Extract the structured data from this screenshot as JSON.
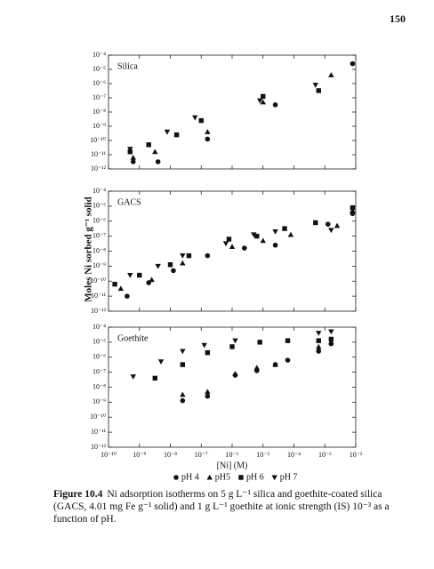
{
  "page_number": "150",
  "chart_data": [
    {
      "type": "scatter",
      "title": "Silica",
      "xscale": "log",
      "yscale": "log",
      "xlim": [
        1e-10,
        0.01
      ],
      "ylim": [
        1e-12,
        0.0001
      ],
      "xticks": [
        1e-10,
        1e-09,
        1e-08,
        1e-07,
        1e-06,
        1e-05,
        0.0001,
        0.001,
        0.01
      ],
      "yticks": [
        {
          "value": 1e-12,
          "label": "10⁻¹²"
        },
        {
          "value": 1e-11,
          "label": "10⁻¹¹"
        },
        {
          "value": 1e-10,
          "label": "10⁻¹⁰"
        },
        {
          "value": 1e-09,
          "label": "10⁻⁹"
        },
        {
          "value": 1e-08,
          "label": "10⁻⁸"
        },
        {
          "value": 1e-07,
          "label": "10⁻⁷"
        },
        {
          "value": 1e-06,
          "label": "10⁻⁶"
        },
        {
          "value": 1e-05,
          "label": "10⁻⁵"
        },
        {
          "value": 0.0001,
          "label": "10⁻⁴"
        }
      ],
      "series": [
        {
          "name": "pH 4",
          "marker": "circle",
          "color": "#111111",
          "x": [
            6.3e-10,
            4e-09,
            1.6e-07,
            2.5e-05,
            0.0079
          ],
          "values": [
            3.2e-12,
            3.2e-12,
            1.26e-10,
            3.2e-08,
            2.5e-05
          ]
        },
        {
          "name": "pH5",
          "marker": "triangle-up",
          "color": "#111111",
          "x": [
            6.3e-10,
            3.2e-09,
            1.6e-07,
            1e-05,
            0.0016
          ],
          "values": [
            6.3e-12,
            1.6e-11,
            4e-10,
            5e-08,
            4e-06
          ]
        },
        {
          "name": "pH 6",
          "marker": "square",
          "color": "#111111",
          "x": [
            5e-10,
            2e-09,
            1.6e-08,
            1e-07,
            1e-05,
            0.00063
          ],
          "values": [
            1.6e-11,
            5e-11,
            2.5e-10,
            2.5e-09,
            1.26e-07,
            3.2e-07
          ]
        },
        {
          "name": "pH 7",
          "marker": "triangle-down",
          "color": "#111111",
          "x": [
            5e-10,
            7.9e-09,
            6.3e-08,
            7.9e-06,
            0.0005
          ],
          "values": [
            2.5e-11,
            4e-10,
            4e-09,
            6.3e-08,
            7.9e-07
          ]
        }
      ]
    },
    {
      "type": "scatter",
      "title": "GACS",
      "ylabel": "Moles Ni sorbed g⁻¹ solid",
      "xscale": "log",
      "yscale": "log",
      "xlim": [
        1e-10,
        0.01
      ],
      "ylim": [
        1e-12,
        0.0001
      ],
      "xticks": [
        1e-10,
        1e-09,
        1e-08,
        1e-07,
        1e-06,
        1e-05,
        0.0001,
        0.001,
        0.01
      ],
      "yticks": [
        {
          "value": 1e-12,
          "label": "10⁻¹²"
        },
        {
          "value": 1e-11,
          "label": "10⁻¹¹"
        },
        {
          "value": 1e-10,
          "label": "10⁻¹⁰"
        },
        {
          "value": 1e-09,
          "label": "10⁻⁹"
        },
        {
          "value": 1e-08,
          "label": "10⁻⁸"
        },
        {
          "value": 1e-07,
          "label": "10⁻⁷"
        },
        {
          "value": 1e-06,
          "label": "10⁻⁶"
        },
        {
          "value": 1e-05,
          "label": "10⁻⁵"
        },
        {
          "value": 0.0001,
          "label": "10⁻⁴"
        }
      ],
      "series": [
        {
          "name": "pH 4",
          "marker": "circle",
          "color": "#111111",
          "x": [
            4e-10,
            2e-09,
            1.26e-08,
            1.6e-07,
            2.5e-06,
            2.5e-05,
            0.00126,
            0.0079
          ],
          "values": [
            1e-11,
            7.9e-11,
            5e-10,
            5e-09,
            1.6e-08,
            2.5e-08,
            6.3e-07,
            3.2e-06
          ]
        },
        {
          "name": "pH5",
          "marker": "triangle-up",
          "color": "#111111",
          "x": [
            2.5e-10,
            2.5e-09,
            2.5e-08,
            1e-06,
            1e-05,
            7.9e-05,
            0.0025,
            0.0079
          ],
          "values": [
            3.2e-11,
            1.26e-10,
            1.6e-09,
            2e-08,
            5e-08,
            1.26e-07,
            5e-07,
            5e-06
          ]
        },
        {
          "name": "pH 6",
          "marker": "square",
          "color": "#111111",
          "x": [
            1.6e-10,
            1e-09,
            1e-08,
            4e-08,
            7.9e-07,
            6.3e-06,
            5e-05,
            0.0005,
            0.0079
          ],
          "values": [
            6.3e-11,
            2.5e-10,
            1.26e-09,
            5e-09,
            6.3e-08,
            1e-07,
            3.2e-07,
            7.9e-07,
            7.9e-06
          ]
        },
        {
          "name": "pH 7",
          "marker": "triangle-down",
          "color": "#111111",
          "x": [
            5e-10,
            4e-09,
            2.5e-08,
            6.3e-07,
            5e-06,
            2.5e-05,
            0.0016,
            0.0079
          ],
          "values": [
            2.5e-10,
            1e-09,
            5e-09,
            3.2e-08,
            1.26e-07,
            2e-07,
            2.5e-07,
            3.2e-06
          ]
        }
      ]
    },
    {
      "type": "scatter",
      "title": "Goethite",
      "xlabel": "[Ni] (M)",
      "xscale": "log",
      "yscale": "log",
      "xlim": [
        1e-10,
        0.01
      ],
      "ylim": [
        1e-12,
        0.0001
      ],
      "xticks": [
        {
          "value": 1e-10,
          "label": "10⁻¹⁰"
        },
        {
          "value": 1e-09,
          "label": "10⁻⁹"
        },
        {
          "value": 1e-08,
          "label": "10⁻⁸"
        },
        {
          "value": 1e-07,
          "label": "10⁻⁷"
        },
        {
          "value": 1e-06,
          "label": "10⁻⁶"
        },
        {
          "value": 1e-05,
          "label": "10⁻⁵"
        },
        {
          "value": 0.0001,
          "label": "10⁻⁴"
        },
        {
          "value": 0.001,
          "label": "10⁻³"
        },
        {
          "value": 0.01,
          "label": "10⁻²"
        }
      ],
      "yticks": [
        {
          "value": 1e-12,
          "label": "10⁻¹²"
        },
        {
          "value": 1e-11,
          "label": "10⁻¹¹"
        },
        {
          "value": 1e-10,
          "label": "10⁻¹⁰"
        },
        {
          "value": 1e-09,
          "label": "10⁻⁹"
        },
        {
          "value": 1e-08,
          "label": "10⁻⁸"
        },
        {
          "value": 1e-07,
          "label": "10⁻⁷"
        },
        {
          "value": 1e-06,
          "label": "10⁻⁶"
        },
        {
          "value": 1e-05,
          "label": "10⁻⁵"
        },
        {
          "value": 0.0001,
          "label": "10⁻⁴"
        }
      ],
      "series": [
        {
          "name": "pH 4",
          "marker": "circle",
          "color": "#111111",
          "x": [
            2.5e-08,
            1.6e-07,
            1.26e-06,
            6.3e-06,
            2.5e-05,
            6.3e-05,
            0.00063,
            0.0016
          ],
          "values": [
            1.26e-09,
            2.5e-09,
            6.3e-08,
            1.26e-07,
            3.2e-07,
            6.3e-07,
            2.5e-06,
            7.9e-06
          ]
        },
        {
          "name": "pH5",
          "marker": "triangle-up",
          "color": "#111111",
          "x": [
            2.5e-08,
            1.6e-07,
            1.26e-06,
            6.3e-06,
            2.5e-05,
            0.00063,
            0.0016
          ],
          "values": [
            3.2e-09,
            5e-09,
            7.9e-08,
            2e-07,
            3.2e-07,
            5e-06,
            1e-05
          ]
        },
        {
          "name": "pH 6",
          "marker": "square",
          "color": "#111111",
          "x": [
            3.2e-09,
            2.5e-08,
            1.6e-07,
            1e-06,
            7.9e-06,
            6.3e-05,
            0.00063,
            0.0016
          ],
          "values": [
            4e-08,
            3.2e-07,
            2e-06,
            5e-06,
            1e-05,
            1.26e-05,
            1.26e-05,
            1.6e-05
          ]
        },
        {
          "name": "pH 7",
          "marker": "triangle-down",
          "color": "#111111",
          "x": [
            6.3e-10,
            5e-09,
            2.5e-08,
            1.26e-07,
            1.26e-06,
            0.00063,
            0.0016
          ],
          "values": [
            5e-08,
            5e-07,
            2.5e-06,
            6.3e-06,
            1.26e-05,
            4e-05,
            5e-05
          ]
        }
      ]
    }
  ],
  "caption": {
    "label": "Figure 10.4",
    "text": "Ni adsorption isotherms on 5 g L⁻¹ silica and goethite-coated silica (GACS, 4.01 mg Fe g⁻¹ solid) and 1 g L⁻¹ goethite at ionic strength (IS) 10⁻³ as a function of pH."
  }
}
